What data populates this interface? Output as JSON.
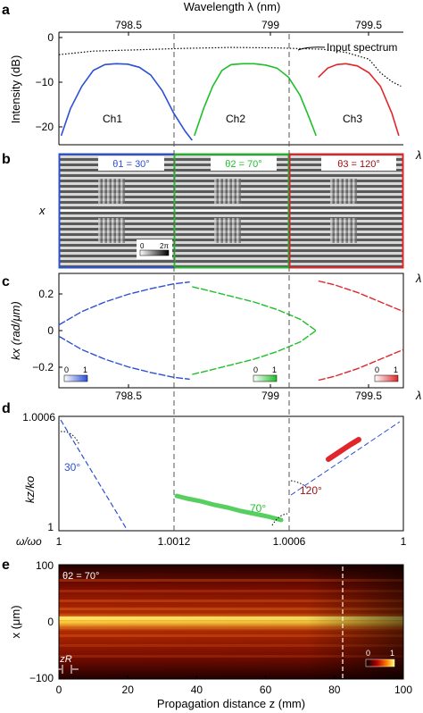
{
  "panels": {
    "a": {
      "letter": "a",
      "top_axis_label": "Wavelength λ (nm)",
      "top_ticks": [
        "798.5",
        "799",
        "799.5"
      ],
      "ylabel": "Intensity (dB)",
      "yticks": [
        "0",
        "−10",
        "−20"
      ],
      "xlabel": "λ",
      "annotation": "Input spectrum",
      "channels": [
        "Ch1",
        "Ch2",
        "Ch3"
      ]
    },
    "b": {
      "letter": "b",
      "ylabel": "x",
      "xlabel": "λ",
      "theta_labels": [
        "θ1 = 30°",
        "θ2 = 70°",
        "θ3 = 120°"
      ],
      "colorbar": [
        "0",
        "2π"
      ]
    },
    "c": {
      "letter": "c",
      "ylabel": "kx (rad/μm)",
      "yticks": [
        "0.2",
        "0",
        "−0.2"
      ],
      "xticks": [
        "798.5",
        "799",
        "799.5"
      ],
      "xlabel": "λ",
      "colorbars": [
        [
          "0",
          "1"
        ],
        [
          "0",
          "1"
        ],
        [
          "0",
          "1"
        ]
      ]
    },
    "d": {
      "letter": "d",
      "ylabel": "kz/ko",
      "ytick_top": "1.0006",
      "ytick_bottom": "1",
      "xlabel": "ω/ωo",
      "xticks": [
        "1",
        "1.0012",
        "1.0006",
        "1"
      ],
      "angles": [
        "30°",
        "70°",
        "120°"
      ]
    },
    "e": {
      "letter": "e",
      "ylabel": "x (μm)",
      "yticks": [
        "100",
        "0",
        "−100"
      ],
      "xticks": [
        "0",
        "20",
        "40",
        "60",
        "80",
        "100"
      ],
      "xlabel": "Propagation distance z (mm)",
      "theta_label": "θ2 = 70°",
      "zr_label": "zR",
      "colorbar": [
        "0",
        "1"
      ]
    }
  },
  "colors": {
    "ch1": "#2b4fd6",
    "ch2": "#1fbf2a",
    "ch3": "#e0262a",
    "dark_red": "#a01010"
  },
  "chart_data": [
    {
      "panel": "a",
      "type": "line",
      "title": "",
      "xlabel": "Wavelength λ (nm)",
      "ylabel": "Intensity (dB)",
      "xlim": [
        798.15,
        799.65
      ],
      "ylim": [
        -24,
        1
      ],
      "series": [
        {
          "name": "Ch1",
          "x": [
            798.16,
            798.2,
            798.25,
            798.3,
            798.35,
            798.4,
            798.45,
            798.5,
            798.55,
            798.6,
            798.65,
            798.7,
            798.73
          ],
          "y": [
            -22,
            -16,
            -11,
            -7.5,
            -6.2,
            -6,
            -6.1,
            -6.8,
            -8.5,
            -12,
            -17,
            -21,
            -23
          ]
        },
        {
          "name": "Ch2",
          "x": [
            798.74,
            798.78,
            798.82,
            798.86,
            798.9,
            798.95,
            799,
            799.05,
            799.1,
            799.15,
            799.2,
            799.24,
            799.27
          ],
          "y": [
            -22,
            -16,
            -11,
            -7.5,
            -6.2,
            -6,
            -6,
            -6.3,
            -7,
            -9,
            -13,
            -18,
            -22
          ]
        },
        {
          "name": "Ch3",
          "x": [
            799.28,
            799.32,
            799.36,
            799.4,
            799.45,
            799.5,
            799.55,
            799.6,
            799.63
          ],
          "y": [
            -9,
            -7,
            -6.2,
            -6,
            -6.5,
            -8,
            -11,
            -17,
            -22
          ]
        },
        {
          "name": "Input spectrum",
          "x": [
            798.15,
            798.3,
            798.5,
            798.7,
            798.9,
            799.1,
            799.3,
            799.4,
            799.5,
            799.55,
            799.6,
            799.64
          ],
          "y": [
            -4,
            -3.2,
            -2.9,
            -2.6,
            -2.4,
            -2.5,
            -2.8,
            -3.5,
            -5,
            -8,
            -10,
            -11
          ]
        }
      ]
    },
    {
      "panel": "c",
      "type": "line",
      "title": "",
      "xlabel": "λ",
      "ylabel": "kx (rad/μm)",
      "xlim": [
        798.15,
        799.65
      ],
      "ylim": [
        -0.3,
        0.3
      ],
      "series": [
        {
          "name": "Ch1",
          "x": [
            798.15,
            798.25,
            798.35,
            798.45,
            798.55,
            798.65,
            798.72
          ],
          "y": [
            0.03,
            0.1,
            0.15,
            0.19,
            0.22,
            0.245,
            0.255
          ]
        },
        {
          "name": "Ch2",
          "x": [
            798.73,
            798.8,
            798.9,
            799,
            799.1,
            799.2,
            799.27
          ],
          "y": [
            0.23,
            0.21,
            0.18,
            0.15,
            0.11,
            0.06,
            0.0
          ]
        },
        {
          "name": "Ch3",
          "x": [
            799.28,
            799.35,
            799.45,
            799.55,
            799.65
          ],
          "y": [
            0.26,
            0.24,
            0.2,
            0.15,
            0.1
          ]
        }
      ]
    },
    {
      "panel": "d",
      "type": "line",
      "title": "",
      "xlabel": "ω/ωo",
      "ylabel": "kz/ko",
      "series": [
        {
          "name": "30°"
        },
        {
          "name": "70°"
        },
        {
          "name": "120°"
        }
      ]
    },
    {
      "panel": "e",
      "type": "heatmap",
      "title": "",
      "xlabel": "Propagation distance z (mm)",
      "ylabel": "x (μm)",
      "xlim": [
        0,
        100
      ],
      "ylim": [
        -100,
        100
      ],
      "colorbar_range": [
        0,
        1
      ]
    }
  ]
}
